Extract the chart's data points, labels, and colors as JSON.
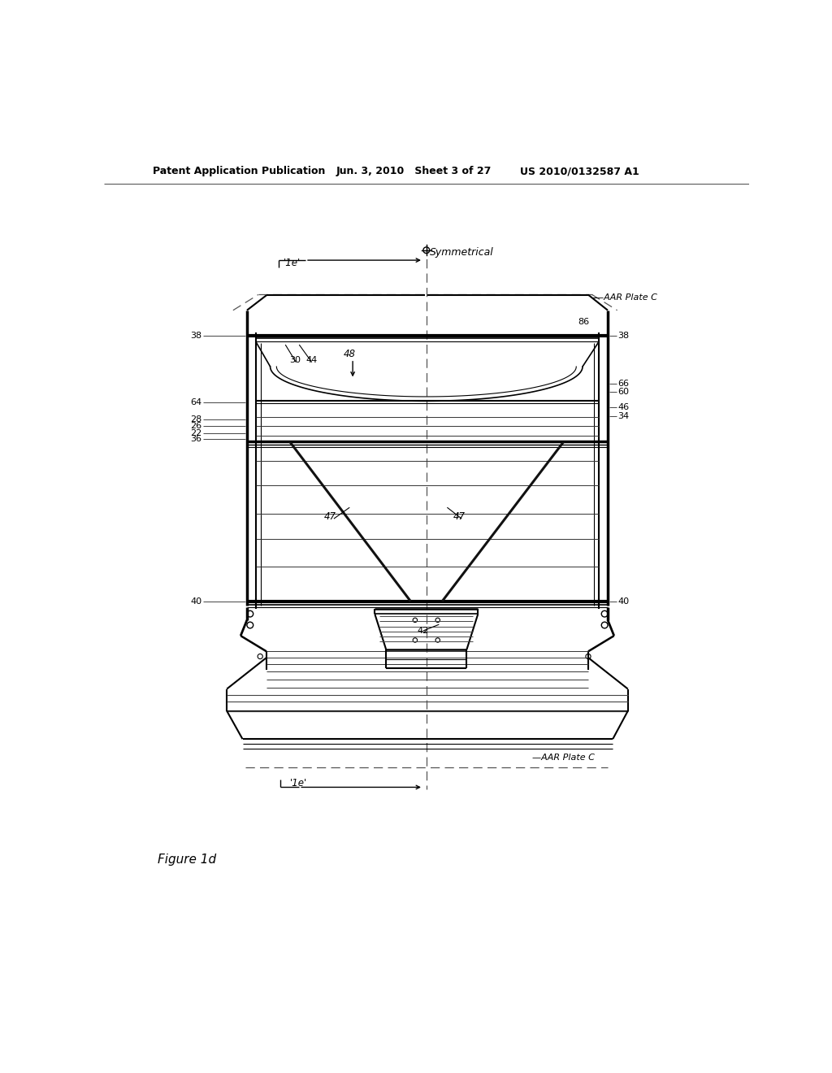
{
  "header_left": "Patent Application Publication",
  "header_mid": "Jun. 3, 2010   Sheet 3 of 27",
  "header_right": "US 2010/0132587 A1",
  "figure_label": "Figure 1d",
  "bg_color": "#ffffff"
}
